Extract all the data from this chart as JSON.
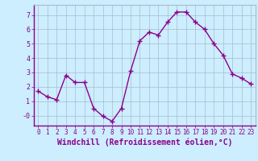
{
  "x": [
    0,
    1,
    2,
    3,
    4,
    5,
    6,
    7,
    8,
    9,
    10,
    11,
    12,
    13,
    14,
    15,
    16,
    17,
    18,
    19,
    20,
    21,
    22,
    23
  ],
  "y": [
    1.7,
    1.3,
    1.1,
    2.8,
    2.3,
    2.3,
    0.5,
    -0.05,
    -0.4,
    0.5,
    3.1,
    5.2,
    5.8,
    5.6,
    6.5,
    7.2,
    7.2,
    6.5,
    6.0,
    5.0,
    4.2,
    2.9,
    2.6,
    2.2
  ],
  "line_color": "#8b008b",
  "marker": "+",
  "markersize": 4,
  "linewidth": 1.0,
  "xlabel": "Windchill (Refroidissement éolien,°C)",
  "xlabel_fontsize": 7,
  "xtick_labels": [
    "0",
    "1",
    "2",
    "3",
    "4",
    "5",
    "6",
    "7",
    "8",
    "9",
    "10",
    "11",
    "12",
    "13",
    "14",
    "15",
    "16",
    "17",
    "18",
    "19",
    "20",
    "21",
    "22",
    "23"
  ],
  "ytick_labels": [
    "-0",
    "1",
    "2",
    "3",
    "4",
    "5",
    "6",
    "7"
  ],
  "ytick_vals": [
    0,
    1,
    2,
    3,
    4,
    5,
    6,
    7
  ],
  "ylim": [
    -0.7,
    7.7
  ],
  "xlim": [
    -0.5,
    23.5
  ],
  "bg_color": "#cceeff",
  "grid_color": "#aabbcc",
  "tick_color": "#8b008b",
  "label_color": "#8b008b",
  "spine_color": "#8b008b"
}
